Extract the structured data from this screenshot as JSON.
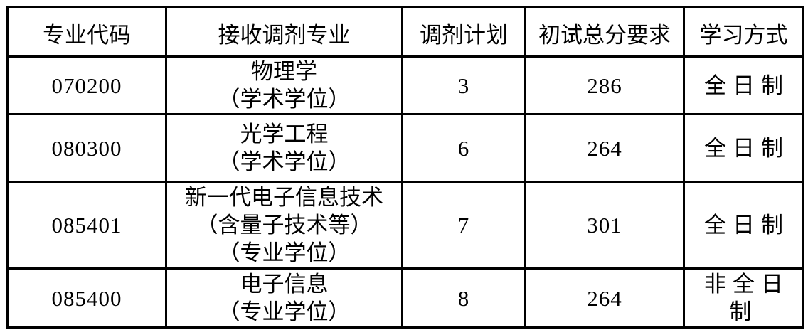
{
  "table": {
    "columns": [
      "专业代码",
      "接收调剂专业",
      "调剂计划",
      "初试总分要求",
      "学习方式"
    ],
    "rows": [
      {
        "code": "070200",
        "major_lines": [
          "物理学",
          "（学术学位）"
        ],
        "plan": "3",
        "score": "286",
        "mode": "全日制"
      },
      {
        "code": "080300",
        "major_lines": [
          "光学工程",
          "（学术学位）"
        ],
        "plan": "6",
        "score": "264",
        "mode": "全日制"
      },
      {
        "code": "085401",
        "major_lines": [
          "新一代电子信息技术",
          "（含量子技术等）",
          "（专业学位）"
        ],
        "plan": "7",
        "score": "301",
        "mode": "全日制"
      },
      {
        "code": "085400",
        "major_lines": [
          "电子信息",
          "（专业学位）"
        ],
        "plan": "8",
        "score": "264",
        "mode": "非全日制"
      }
    ]
  },
  "colors": {
    "border": "#000000",
    "text": "#000000",
    "background": "#ffffff"
  }
}
